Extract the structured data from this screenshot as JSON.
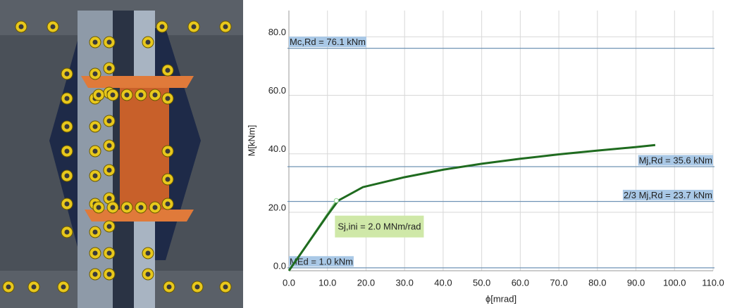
{
  "chart_data": {
    "type": "line",
    "x_label": "ϕ[mrad]",
    "y_label": "M[kNm]",
    "xlim": [
      0,
      110
    ],
    "ylim": [
      0,
      89
    ],
    "xticks": [
      {
        "value": 0,
        "label": "0.0"
      },
      {
        "value": 10,
        "label": "10.0"
      },
      {
        "value": 20,
        "label": "20.0"
      },
      {
        "value": 30,
        "label": "30.0"
      },
      {
        "value": 40,
        "label": "40.0"
      },
      {
        "value": 50,
        "label": "50.0"
      },
      {
        "value": 60,
        "label": "60.0"
      },
      {
        "value": 70,
        "label": "70.0"
      },
      {
        "value": 80,
        "label": "80.0"
      },
      {
        "value": 90,
        "label": "90.0"
      },
      {
        "value": 100,
        "label": "100.0"
      },
      {
        "value": 110,
        "label": "110.0"
      }
    ],
    "yticks": [
      {
        "value": 0,
        "label": "0.0"
      },
      {
        "value": 20,
        "label": "20.0"
      },
      {
        "value": 40,
        "label": "40.0"
      },
      {
        "value": 60,
        "label": "60.0"
      },
      {
        "value": 80,
        "label": "80.0"
      }
    ],
    "grid": true,
    "series": [
      {
        "color": "#1f6b1f",
        "x": [
          0,
          5,
          10,
          12.8,
          19.2,
          30,
          40.2,
          50,
          60,
          70,
          80,
          90,
          95
        ],
        "values": [
          0,
          9.5,
          19,
          24,
          28.6,
          32,
          34.6,
          36.6,
          38.3,
          39.8,
          41.1,
          42.3,
          43
        ]
      }
    ],
    "initial_stiffness": {
      "color": "#8fd18f",
      "x": [
        0,
        12.3
      ],
      "values": [
        0,
        24
      ],
      "label": "Sj,ini = 2.0 MNm/rad"
    },
    "reference_lines": [
      {
        "value": 76.1,
        "label": "Mc,Rd = 76.1 kNm",
        "side": "left"
      },
      {
        "value": 35.6,
        "label": "Mj,Rd = 35.6 kNm",
        "side": "right"
      },
      {
        "value": 23.7,
        "label": "2/3 Mj,Rd = 23.7 kNm",
        "side": "right"
      },
      {
        "value": 1.0,
        "label": "MEd = 1.0 kNm",
        "side": "left"
      }
    ],
    "reference_color": "#6f93b5",
    "reference_label_color": "#a9c8e6"
  }
}
